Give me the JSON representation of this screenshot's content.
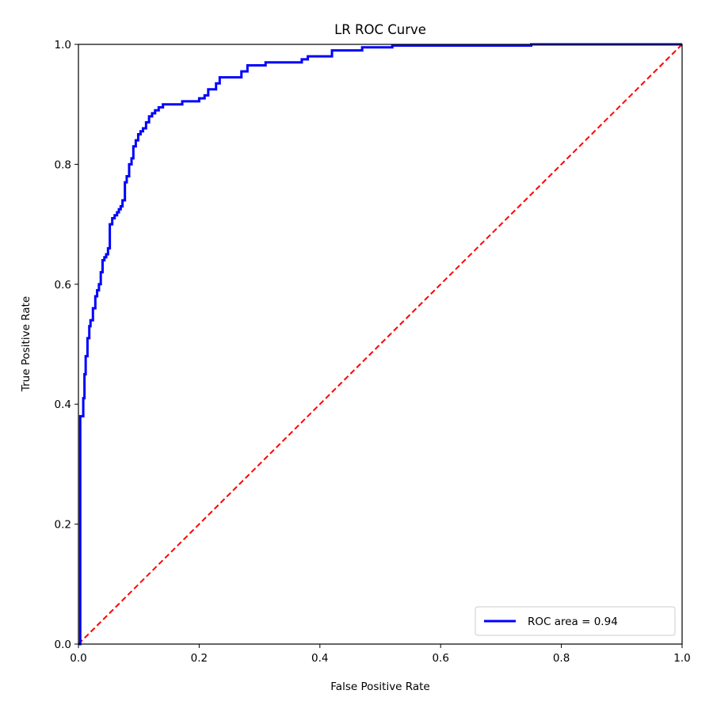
{
  "chart_data": {
    "type": "line",
    "title": "LR ROC Curve",
    "xlabel": "False Positive Rate",
    "ylabel": "True Positive Rate",
    "xlim": [
      0.0,
      1.0
    ],
    "ylim": [
      0.0,
      1.0
    ],
    "x_ticks": [
      "0.0",
      "0.2",
      "0.4",
      "0.6",
      "0.8",
      "1.0"
    ],
    "y_ticks": [
      "0.0",
      "0.2",
      "0.4",
      "0.6",
      "0.8",
      "1.0"
    ],
    "grid": false,
    "legend_position": "lower-right",
    "series": [
      {
        "name": "ROC area = 0.94",
        "color": "#0000ff",
        "style": "solid",
        "step": true,
        "x": [
          0.0,
          0.003,
          0.003,
          0.005,
          0.008,
          0.01,
          0.012,
          0.015,
          0.018,
          0.02,
          0.024,
          0.028,
          0.031,
          0.034,
          0.037,
          0.04,
          0.043,
          0.046,
          0.049,
          0.052,
          0.056,
          0.06,
          0.064,
          0.067,
          0.07,
          0.073,
          0.077,
          0.08,
          0.084,
          0.088,
          0.091,
          0.095,
          0.099,
          0.103,
          0.107,
          0.112,
          0.117,
          0.122,
          0.127,
          0.133,
          0.14,
          0.147,
          0.155,
          0.163,
          0.172,
          0.181,
          0.2,
          0.209,
          0.215,
          0.222,
          0.228,
          0.234,
          0.24,
          0.245,
          0.27,
          0.28,
          0.285,
          0.31,
          0.33,
          0.35,
          0.37,
          0.38,
          0.4,
          0.42,
          0.425,
          0.47,
          0.49,
          0.52,
          0.6,
          0.68,
          0.75,
          0.8,
          0.9,
          1.0
        ],
        "y": [
          0.0,
          0.04,
          0.38,
          0.38,
          0.41,
          0.45,
          0.48,
          0.51,
          0.53,
          0.54,
          0.56,
          0.58,
          0.59,
          0.6,
          0.62,
          0.64,
          0.645,
          0.65,
          0.66,
          0.7,
          0.71,
          0.715,
          0.72,
          0.725,
          0.73,
          0.74,
          0.77,
          0.78,
          0.8,
          0.81,
          0.83,
          0.84,
          0.85,
          0.855,
          0.86,
          0.87,
          0.88,
          0.885,
          0.89,
          0.895,
          0.9,
          0.9,
          0.9,
          0.9,
          0.905,
          0.905,
          0.91,
          0.915,
          0.925,
          0.925,
          0.935,
          0.945,
          0.945,
          0.945,
          0.955,
          0.965,
          0.965,
          0.97,
          0.97,
          0.97,
          0.975,
          0.98,
          0.98,
          0.99,
          0.99,
          0.995,
          0.995,
          0.998,
          0.998,
          0.998,
          1.0,
          1.0,
          1.0,
          1.0
        ]
      },
      {
        "name": "",
        "color": "#ff0000",
        "style": "dashed",
        "step": false,
        "x": [
          0.0,
          1.0
        ],
        "y": [
          0.0,
          1.0
        ]
      }
    ]
  }
}
